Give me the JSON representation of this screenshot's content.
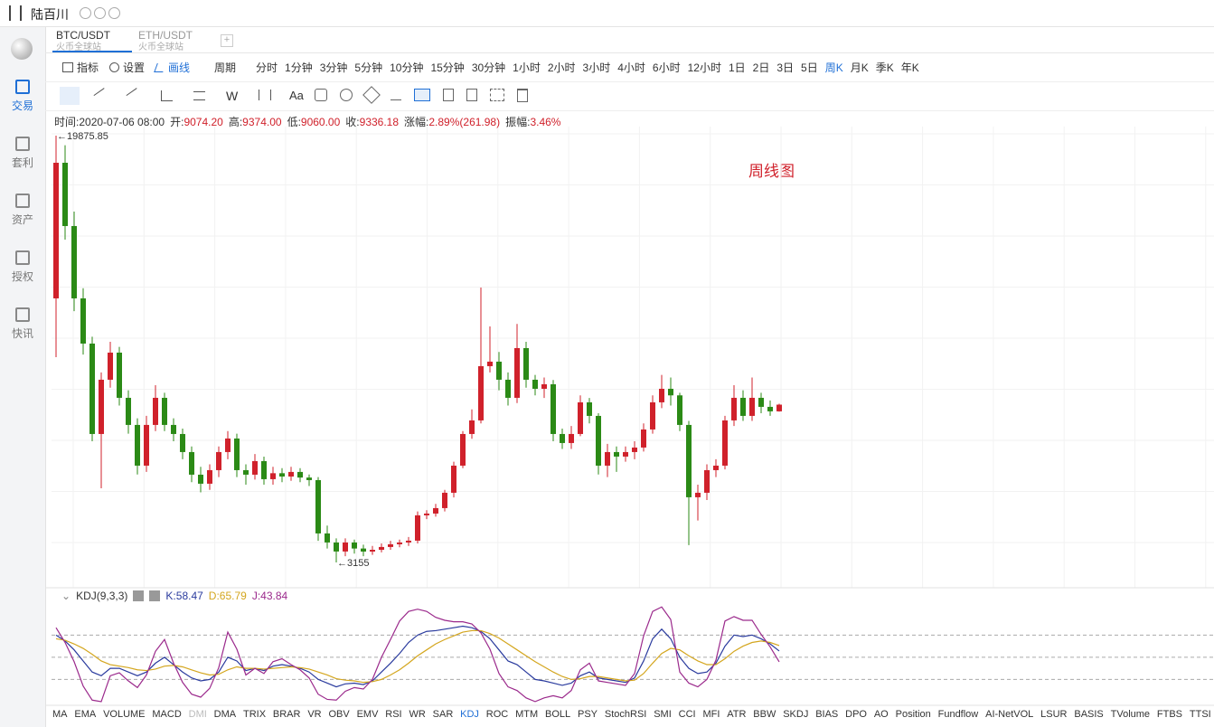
{
  "header": {
    "app_name": "陆百川"
  },
  "sidebar": {
    "items": [
      "交易",
      "套利",
      "资产",
      "授权",
      "快讯"
    ],
    "active": 0
  },
  "tabs": [
    {
      "symbol": "BTC/USDT",
      "exchange": "火币全球站"
    },
    {
      "symbol": "ETH/USDT",
      "exchange": "火币全球站"
    }
  ],
  "toolbar": {
    "indicators": "指标",
    "settings": "设置",
    "draw": "画线",
    "period_label": "周期",
    "periods": [
      "分时",
      "1分钟",
      "3分钟",
      "5分钟",
      "10分钟",
      "15分钟",
      "30分钟",
      "1小时",
      "2小时",
      "3小时",
      "4小时",
      "6小时",
      "12小时",
      "1日",
      "2日",
      "3日",
      "5日",
      "周K",
      "月K",
      "季K",
      "年K"
    ],
    "active_period": 17
  },
  "drawing_tools": {
    "text_tool": "Aa",
    "wave_tool": "W"
  },
  "info": [
    {
      "label": "时间:",
      "value": "2020-07-06 08:00"
    },
    {
      "label": "开:",
      "value": "9074.20"
    },
    {
      "label": "高:",
      "value": "9374.00"
    },
    {
      "label": "低:",
      "value": "9060.00"
    },
    {
      "label": "收:",
      "value": "9336.18"
    },
    {
      "label": "涨幅:",
      "value": "2.89%(261.98)"
    },
    {
      "label": "振幅:",
      "value": "3.46%"
    }
  ],
  "chart": {
    "type": "candlestick",
    "annotation": "周线图",
    "ylim": [
      3155,
      19875.85
    ],
    "up_color": "#d0212b",
    "down_color": "#2b8a16",
    "open": [
      13500,
      18813,
      16334,
      13500,
      11729,
      8187,
      10313,
      11375,
      9604,
      8542,
      6947,
      8542,
      9604,
      8542,
      8187,
      7479,
      6593,
      6239,
      6770,
      7479,
      8010,
      6770,
      6593,
      7125,
      6416,
      6650,
      6520,
      6700,
      6480,
      6380,
      4291,
      3937,
      3583,
      3937,
      3700,
      3580,
      3650,
      3760,
      3866,
      3937,
      4008,
      5000,
      5070,
      5283,
      5885,
      6947,
      8187,
      8719,
      10844,
      11021,
      10313,
      9604,
      11552,
      10313,
      9958,
      10135,
      8187,
      7833,
      8187,
      9427,
      8896,
      6947,
      7479,
      7302,
      7479,
      7656,
      8364,
      9427,
      9958,
      9700,
      8542,
      5708,
      5885,
      6770,
      6947,
      8719,
      9604,
      8896,
      9604,
      9250,
      9074.2
    ],
    "high": [
      19875.85,
      19500,
      16900,
      13900,
      12000,
      10600,
      11800,
      11600,
      9900,
      8800,
      8900,
      10100,
      9800,
      8800,
      8400,
      7700,
      6900,
      7000,
      7700,
      8300,
      8200,
      7000,
      7400,
      7300,
      6900,
      6850,
      6900,
      6850,
      6600,
      6500,
      4600,
      4100,
      4100,
      4050,
      3850,
      3800,
      3900,
      4000,
      4050,
      4150,
      5150,
      5200,
      5450,
      6000,
      7100,
      8300,
      9150,
      13925,
      12400,
      11400,
      10600,
      12500,
      11800,
      10500,
      10400,
      10300,
      8400,
      8500,
      9700,
      9600,
      9000,
      7800,
      7700,
      7700,
      7900,
      8600,
      9700,
      10500,
      10400,
      9800,
      8700,
      6200,
      7000,
      7200,
      8900,
      10100,
      9900,
      10400,
      9800,
      9500,
      9374
    ],
    "low": [
      11198,
      15800,
      13000,
      11300,
      7900,
      6061,
      10000,
      9300,
      8200,
      6600,
      6700,
      8300,
      8300,
      7900,
      7200,
      6300,
      5900,
      6000,
      6500,
      7200,
      6500,
      6200,
      6400,
      6200,
      6200,
      6300,
      6350,
      6300,
      6150,
      4000,
      3700,
      3155,
      3400,
      3500,
      3400,
      3450,
      3550,
      3650,
      3750,
      3800,
      3900,
      4850,
      4950,
      5150,
      5700,
      6850,
      8000,
      8600,
      10600,
      9900,
      9300,
      9400,
      10000,
      9700,
      9600,
      7900,
      7600,
      7600,
      8100,
      8600,
      6600,
      6500,
      6700,
      7100,
      7200,
      7500,
      8200,
      9200,
      9300,
      8300,
      3831,
      4800,
      5600,
      6500,
      6800,
      8500,
      8700,
      8700,
      9000,
      8900,
      9060
    ],
    "close": [
      18813,
      16334,
      13500,
      11729,
      8187,
      10313,
      11375,
      9604,
      8542,
      6947,
      8542,
      9604,
      8542,
      8187,
      7479,
      6593,
      6239,
      6770,
      7479,
      8010,
      6770,
      6593,
      7125,
      6416,
      6650,
      6520,
      6700,
      6480,
      6380,
      4291,
      3937,
      3583,
      3937,
      3700,
      3580,
      3650,
      3760,
      3866,
      3937,
      4008,
      5000,
      5070,
      5283,
      5885,
      6947,
      8187,
      8719,
      10844,
      11021,
      10313,
      9604,
      11552,
      10313,
      9958,
      10135,
      8187,
      7833,
      8187,
      9427,
      8896,
      6947,
      7479,
      7302,
      7479,
      7656,
      8364,
      9427,
      9958,
      9700,
      8542,
      5708,
      5885,
      6770,
      6947,
      8719,
      9604,
      8896,
      9604,
      9250,
      9074.2,
      9336.18
    ]
  },
  "kdj": {
    "title": "KDJ(9,3,3)",
    "ylim": [
      -15,
      122
    ],
    "levels": [
      20,
      50,
      80
    ],
    "series": [
      {
        "name": "K:",
        "color": "#2a3b9e",
        "values": [
          80,
          72,
          60,
          45,
          30,
          25,
          35,
          35,
          30,
          25,
          30,
          42,
          50,
          40,
          30,
          22,
          18,
          20,
          30,
          50,
          45,
          32,
          35,
          32,
          38,
          40,
          38,
          35,
          30,
          20,
          15,
          10,
          14,
          15,
          13,
          18,
          30,
          42,
          55,
          70,
          80,
          85,
          86,
          88,
          90,
          92,
          90,
          85,
          75,
          60,
          45,
          40,
          30,
          20,
          18,
          15,
          12,
          15,
          25,
          30,
          22,
          20,
          18,
          16,
          22,
          45,
          75,
          88,
          75,
          50,
          35,
          28,
          30,
          42,
          65,
          80,
          78,
          80,
          75,
          68,
          58.47
        ]
      },
      {
        "name": "D:",
        "color": "#d4a61e",
        "values": [
          75,
          73,
          68,
          62,
          54,
          45,
          40,
          38,
          36,
          33,
          32,
          34,
          38,
          39,
          37,
          33,
          29,
          26,
          27,
          33,
          37,
          35,
          35,
          34,
          35,
          36,
          37,
          36,
          34,
          30,
          26,
          21,
          19,
          18,
          16,
          17,
          20,
          26,
          33,
          42,
          52,
          60,
          68,
          74,
          79,
          84,
          86,
          86,
          82,
          76,
          68,
          60,
          52,
          44,
          37,
          30,
          24,
          20,
          21,
          24,
          24,
          22,
          20,
          18,
          19,
          28,
          42,
          55,
          62,
          60,
          52,
          45,
          40,
          40,
          48,
          58,
          65,
          70,
          72,
          70,
          65.79
        ]
      },
      {
        "name": "J:",
        "color": "#9b2a8c",
        "values": [
          90,
          70,
          44,
          11,
          -8,
          -10,
          25,
          29,
          18,
          9,
          26,
          58,
          74,
          42,
          16,
          0,
          -4,
          8,
          36,
          84,
          61,
          26,
          35,
          28,
          44,
          48,
          40,
          33,
          22,
          0,
          -7,
          -8,
          4,
          9,
          7,
          20,
          50,
          74,
          99,
          112,
          115,
          112,
          104,
          100,
          98,
          98,
          95,
          83,
          61,
          28,
          10,
          5,
          -5,
          -10,
          -5,
          -2,
          -5,
          5,
          33,
          42,
          18,
          16,
          14,
          12,
          28,
          79,
          112,
          118,
          101,
          30,
          15,
          10,
          20,
          46,
          99,
          105,
          100,
          100,
          81,
          64,
          43.84
        ]
      }
    ]
  },
  "indicators": {
    "items": [
      "MA",
      "EMA",
      "VOLUME",
      "MACD",
      "DMI",
      "DMA",
      "TRIX",
      "BRAR",
      "VR",
      "OBV",
      "EMV",
      "RSI",
      "WR",
      "SAR",
      "KDJ",
      "ROC",
      "MTM",
      "BOLL",
      "PSY",
      "StochRSI",
      "SMI",
      "CCI",
      "MFI",
      "ATR",
      "BBW",
      "SKDJ",
      "BIAS",
      "DPO",
      "AO",
      "Position",
      "Fundflow",
      "AI-NetVOL",
      "LSUR",
      "BASIS",
      "TVolume",
      "FTBS",
      "TTSI"
    ],
    "active": 14,
    "disabled": [
      4
    ]
  }
}
